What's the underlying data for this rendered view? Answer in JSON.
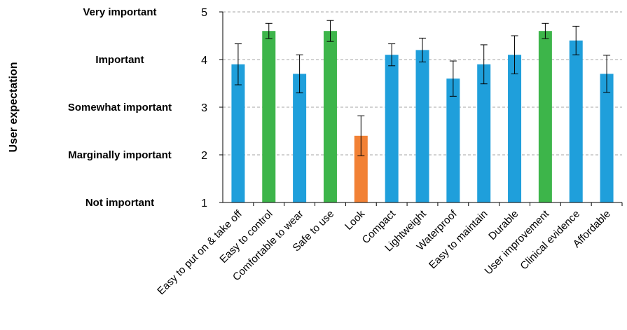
{
  "chart_data": {
    "type": "bar",
    "title": "",
    "xlabel": "",
    "ylabel": "User expectation",
    "ylim": [
      1,
      5
    ],
    "yticks": [
      1,
      2,
      3,
      4,
      5
    ],
    "y_level_labels": [
      "Not important",
      "Marginally important",
      "Somewhat important",
      "Important",
      "Very important"
    ],
    "grid": "horizontal dashed",
    "legend": "none",
    "categories": [
      "Easy to put on & take off",
      "Easy to control",
      "Comfortable to wear",
      "Safe to use",
      "Look",
      "Compact",
      "Lightweight",
      "Waterproof",
      "Easy to maintain",
      "Durable",
      "User improvement",
      "Clinical evidence",
      "Affordable"
    ],
    "values": [
      3.9,
      4.6,
      3.7,
      4.6,
      2.4,
      4.1,
      4.2,
      3.6,
      3.9,
      4.1,
      4.6,
      4.4,
      3.7
    ],
    "error": [
      0.43,
      0.16,
      0.4,
      0.22,
      0.42,
      0.23,
      0.25,
      0.37,
      0.41,
      0.4,
      0.16,
      0.3,
      0.39
    ],
    "bar_colors": [
      "#1f9fdb",
      "#3db54a",
      "#1f9fdb",
      "#3db54a",
      "#f28135",
      "#1f9fdb",
      "#1f9fdb",
      "#1f9fdb",
      "#1f9fdb",
      "#1f9fdb",
      "#3db54a",
      "#1f9fdb",
      "#1f9fdb"
    ]
  }
}
